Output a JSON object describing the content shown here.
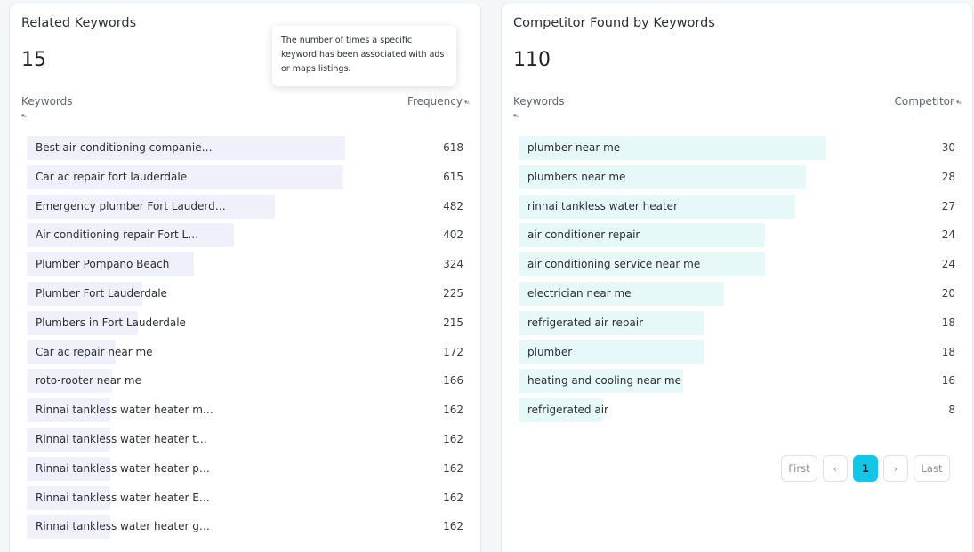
{
  "left": {
    "title": "Related Keywords",
    "count": "15",
    "col_keyword": "Keywords",
    "col_value": "Frequency",
    "tooltip": "The number of times a specific keyword has been associated with ads or maps listings.",
    "max": 618,
    "rows": [
      {
        "label": "Best air conditioning companie…",
        "value": 618
      },
      {
        "label": "Car ac repair fort lauderdale",
        "value": 615
      },
      {
        "label": "Emergency plumber Fort Lauderd…",
        "value": 482
      },
      {
        "label": "Air conditioning repair Fort L…",
        "value": 402
      },
      {
        "label": "Plumber Pompano Beach",
        "value": 324
      },
      {
        "label": "Plumber Fort Lauderdale",
        "value": 225
      },
      {
        "label": "Plumbers in Fort Lauderdale",
        "value": 215
      },
      {
        "label": "Car ac repair near me",
        "value": 172
      },
      {
        "label": "roto-rooter near me",
        "value": 166
      },
      {
        "label": "Rinnai tankless water heater m…",
        "value": 162
      },
      {
        "label": "Rinnai tankless water heater t…",
        "value": 162
      },
      {
        "label": "Rinnai tankless water heater p…",
        "value": 162
      },
      {
        "label": "Rinnai tankless water heater E…",
        "value": 162
      },
      {
        "label": "Rinnai tankless water heater g…",
        "value": 162
      },
      {
        "label": "",
        "value": ""
      }
    ]
  },
  "right": {
    "title": "Competitor Found by Keywords",
    "count": "110",
    "col_keyword": "Keywords",
    "col_value": "Competitor",
    "max": 30,
    "rows": [
      {
        "label": "plumber near me",
        "value": 30
      },
      {
        "label": "plumbers near me",
        "value": 28
      },
      {
        "label": "rinnai tankless water heater",
        "value": 27
      },
      {
        "label": "air conditioner repair",
        "value": 24
      },
      {
        "label": "air conditioning service near me",
        "value": 24
      },
      {
        "label": "electrician near me",
        "value": 20
      },
      {
        "label": "refrigerated air repair",
        "value": 18
      },
      {
        "label": "plumber",
        "value": 18
      },
      {
        "label": "heating and cooling near me",
        "value": 16
      },
      {
        "label": "refrigerated air",
        "value": 8
      }
    ],
    "pagination": {
      "first": "First",
      "prev": "‹",
      "current": "1",
      "next": "›",
      "last": "Last"
    }
  },
  "colors": {
    "left_bar": "#f0f0fb",
    "right_bar": "#e6f8f7",
    "active_page": "#12c6e6"
  },
  "icons": {
    "sort": "sort-toggle-icon"
  }
}
